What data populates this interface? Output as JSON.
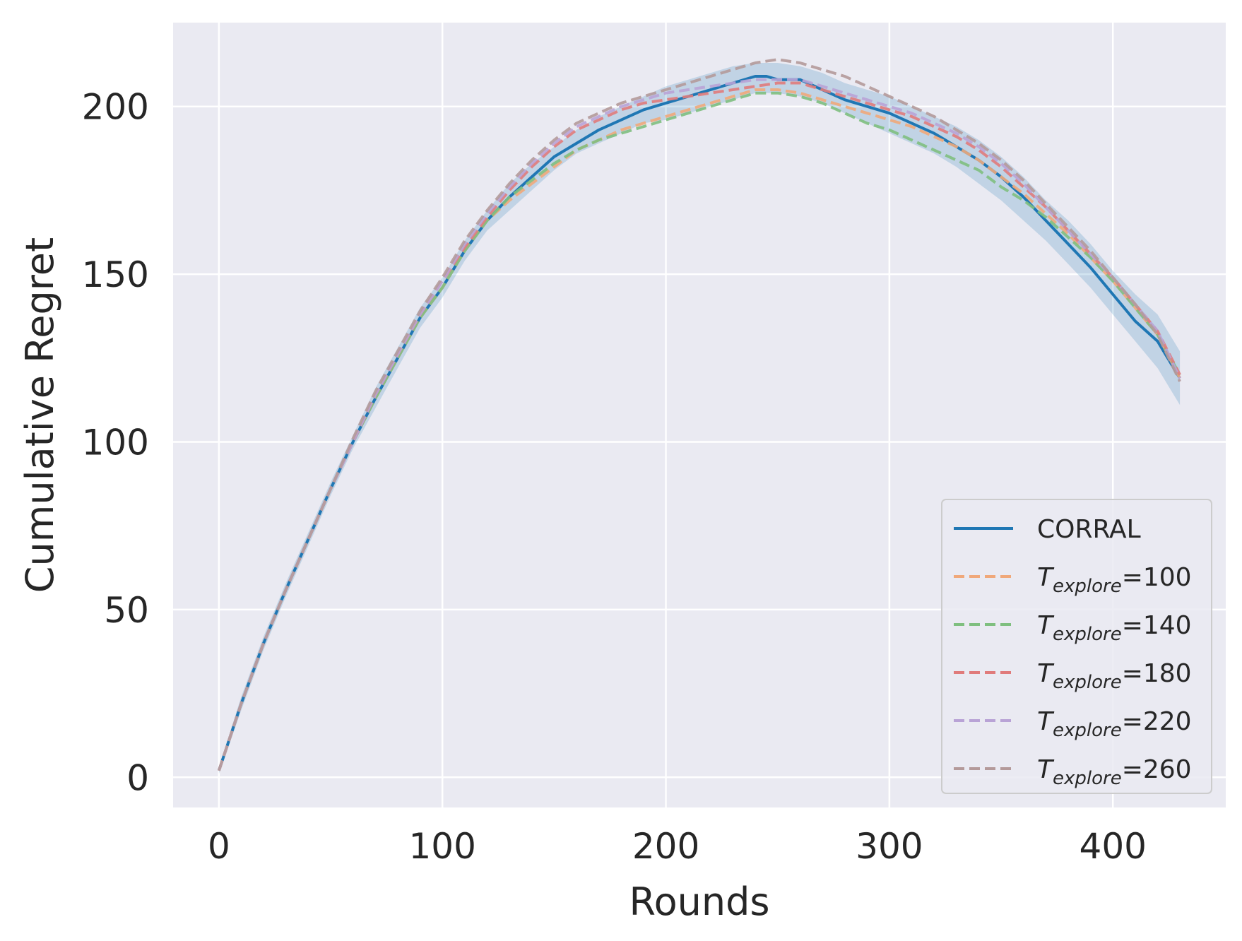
{
  "chart_data": {
    "type": "line",
    "title": "",
    "xlabel": "Rounds",
    "ylabel": "Cumulative Regret",
    "xlim": [
      -20.5,
      450.5
    ],
    "ylim": [
      -9,
      225
    ],
    "xticks": [
      0,
      100,
      200,
      300,
      400
    ],
    "xtick_labels": [
      "0",
      "100",
      "200",
      "300",
      "400"
    ],
    "yticks": [
      0,
      50,
      100,
      150,
      200
    ],
    "ytick_labels": [
      "0",
      "50",
      "100",
      "150",
      "200"
    ],
    "grid": true,
    "legend_position": "lower right",
    "background": "#eaeaf2",
    "series": [
      {
        "name": "CORRAL",
        "legend_label": "CORRAL",
        "style": "solid",
        "color": "#1f77b4",
        "x": [
          0,
          10,
          20,
          30,
          40,
          50,
          60,
          70,
          80,
          90,
          100,
          110,
          120,
          130,
          140,
          150,
          160,
          170,
          180,
          190,
          200,
          210,
          220,
          230,
          240,
          245,
          250,
          260,
          270,
          280,
          290,
          300,
          310,
          320,
          330,
          340,
          350,
          360,
          370,
          380,
          390,
          400,
          410,
          420,
          430
        ],
        "y": [
          2,
          22,
          40,
          56,
          71,
          86,
          100,
          113,
          125,
          137,
          146,
          157,
          166,
          173,
          179,
          185,
          189,
          193,
          196,
          199,
          201,
          203,
          205,
          207,
          209,
          209,
          208,
          208,
          205,
          202,
          200,
          198,
          195,
          192,
          188,
          184,
          179,
          173,
          166,
          159,
          152,
          144,
          136,
          130,
          119
        ],
        "band_upper": [
          3,
          24,
          42,
          58,
          73,
          88,
          102,
          116,
          128,
          140,
          149,
          160,
          169,
          177,
          183,
          188,
          193,
          197,
          200,
          203,
          206,
          208,
          210,
          212,
          213,
          213,
          213,
          212,
          210,
          207,
          205,
          203,
          200,
          197,
          194,
          190,
          185,
          179,
          172,
          166,
          159,
          151,
          144,
          138,
          127
        ],
        "band_lower": [
          1,
          20,
          38,
          54,
          69,
          84,
          98,
          110,
          122,
          134,
          143,
          154,
          163,
          169,
          175,
          181,
          186,
          189,
          192,
          195,
          196,
          198,
          200,
          202,
          204,
          204,
          204,
          203,
          201,
          198,
          195,
          192,
          189,
          186,
          182,
          177,
          172,
          166,
          160,
          153,
          146,
          138,
          130,
          122,
          111
        ]
      },
      {
        "name": "T_explore=100",
        "legend_label_base": "T",
        "legend_label_sub": "explore",
        "legend_label_suffix": "=100",
        "style": "dashed",
        "color": "#f0a87a",
        "x": [
          0,
          10,
          20,
          30,
          40,
          50,
          60,
          70,
          80,
          90,
          100,
          110,
          120,
          130,
          140,
          150,
          160,
          170,
          180,
          190,
          200,
          210,
          220,
          230,
          240,
          250,
          260,
          270,
          280,
          290,
          300,
          310,
          320,
          330,
          340,
          350,
          360,
          370,
          380,
          390,
          400,
          410,
          420,
          430
        ],
        "y": [
          2,
          22,
          40,
          56,
          71,
          86,
          100,
          113,
          125,
          137,
          146,
          157,
          166,
          172,
          177,
          182,
          187,
          190,
          193,
          195,
          197,
          199,
          201,
          203,
          205,
          205,
          204,
          202,
          200,
          198,
          196,
          194,
          191,
          188,
          184,
          179,
          174,
          168,
          162,
          155,
          148,
          140,
          132,
          119
        ]
      },
      {
        "name": "T_explore=140",
        "legend_label_base": "T",
        "legend_label_sub": "explore",
        "legend_label_suffix": "=140",
        "style": "dashed",
        "color": "#7fbf7f",
        "x": [
          0,
          10,
          20,
          30,
          40,
          50,
          60,
          70,
          80,
          90,
          100,
          110,
          120,
          130,
          140,
          150,
          160,
          170,
          180,
          190,
          200,
          210,
          220,
          230,
          240,
          250,
          260,
          270,
          280,
          290,
          300,
          310,
          320,
          330,
          340,
          350,
          360,
          370,
          380,
          390,
          400,
          410,
          420,
          430
        ],
        "y": [
          2,
          22,
          40,
          56,
          71,
          86,
          100,
          113,
          125,
          137,
          146,
          157,
          166,
          173,
          178,
          183,
          187,
          190,
          192,
          194,
          196,
          198,
          200,
          202,
          204,
          204,
          203,
          201,
          198,
          195,
          193,
          190,
          187,
          184,
          181,
          176,
          172,
          167,
          161,
          155,
          148,
          140,
          132,
          120
        ]
      },
      {
        "name": "T_explore=180",
        "legend_label_base": "T",
        "legend_label_sub": "explore",
        "legend_label_suffix": "=180",
        "style": "dashed",
        "color": "#e07b7b",
        "x": [
          0,
          10,
          20,
          30,
          40,
          50,
          60,
          70,
          80,
          90,
          100,
          110,
          120,
          130,
          140,
          150,
          160,
          170,
          180,
          190,
          200,
          210,
          220,
          230,
          240,
          250,
          260,
          270,
          280,
          290,
          300,
          310,
          320,
          330,
          340,
          350,
          360,
          370,
          380,
          390,
          400,
          410,
          420,
          430
        ],
        "y": [
          2,
          22,
          40,
          56,
          71,
          86,
          100,
          114,
          126,
          138,
          148,
          158,
          167,
          175,
          182,
          188,
          193,
          196,
          199,
          201,
          202,
          203,
          204,
          205,
          206,
          207,
          207,
          205,
          203,
          201,
          199,
          197,
          194,
          191,
          187,
          182,
          176,
          170,
          163,
          156,
          149,
          141,
          133,
          120
        ]
      },
      {
        "name": "T_explore=220",
        "legend_label_base": "T",
        "legend_label_sub": "explore",
        "legend_label_suffix": "=220",
        "style": "dashed",
        "color": "#b9a3d6",
        "x": [
          0,
          10,
          20,
          30,
          40,
          50,
          60,
          70,
          80,
          90,
          100,
          110,
          120,
          130,
          140,
          150,
          160,
          170,
          180,
          190,
          200,
          210,
          220,
          230,
          240,
          250,
          260,
          270,
          280,
          290,
          300,
          310,
          320,
          330,
          340,
          350,
          360,
          370,
          380,
          390,
          400,
          410,
          420,
          430
        ],
        "y": [
          2,
          22,
          40,
          56,
          71,
          86,
          100,
          114,
          126,
          138,
          148,
          159,
          168,
          176,
          183,
          189,
          194,
          197,
          200,
          202,
          204,
          205,
          206,
          207,
          208,
          208,
          208,
          206,
          204,
          202,
          200,
          198,
          195,
          192,
          188,
          183,
          177,
          170,
          163,
          156,
          149,
          141,
          133,
          119
        ]
      },
      {
        "name": "T_explore=260",
        "legend_label_base": "T",
        "legend_label_sub": "explore",
        "legend_label_suffix": "=260",
        "style": "dashed",
        "color": "#b49a9a",
        "x": [
          0,
          10,
          20,
          30,
          40,
          50,
          60,
          70,
          80,
          90,
          100,
          110,
          120,
          130,
          140,
          150,
          160,
          170,
          180,
          190,
          200,
          210,
          220,
          230,
          240,
          250,
          260,
          270,
          280,
          290,
          300,
          310,
          320,
          330,
          340,
          350,
          360,
          370,
          380,
          390,
          400,
          410,
          420,
          430
        ],
        "y": [
          2,
          22,
          40,
          56,
          71,
          86,
          101,
          115,
          127,
          139,
          149,
          160,
          169,
          177,
          184,
          190,
          195,
          198,
          201,
          203,
          205,
          207,
          209,
          211,
          213,
          214,
          213,
          211,
          209,
          206,
          203,
          200,
          197,
          193,
          189,
          184,
          178,
          171,
          164,
          157,
          149,
          141,
          132,
          118
        ]
      }
    ]
  }
}
